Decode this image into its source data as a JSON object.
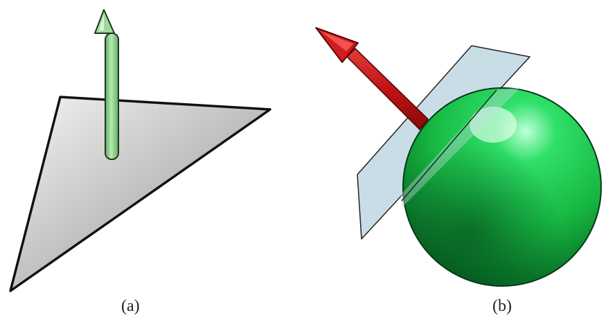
{
  "panels": [
    {
      "id": "a",
      "caption": "(a)"
    },
    {
      "id": "b",
      "caption": "(b)"
    }
  ],
  "colors": {
    "triangle_light": "#f4f4f4",
    "triangle_dark": "#8e8e8e",
    "green_arrow_light": "#b6e8b4",
    "green_arrow_dark": "#5fae62",
    "red_arrow_light": "#e23a3a",
    "red_arrow_dark": "#8a0808",
    "plane_fill": "#c9dde6",
    "sphere_highlight": "#bfffd8",
    "sphere_mid": "#17c94a",
    "sphere_dark": "#055a1e",
    "outline": "#111111"
  },
  "icons": {
    "a": [
      "triangle-shape",
      "normal-arrow-green"
    ],
    "b": [
      "tangent-plane",
      "sphere",
      "normal-arrow-red"
    ]
  }
}
